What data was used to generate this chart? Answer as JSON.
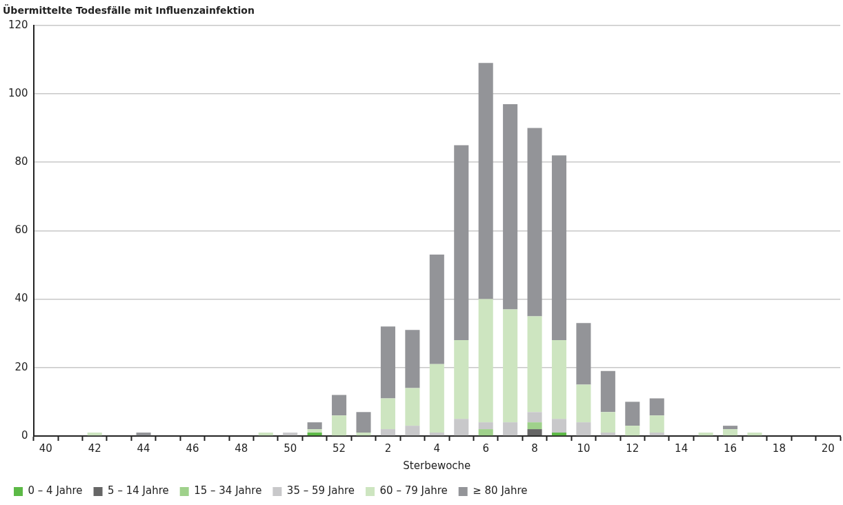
{
  "chart_data": {
    "type": "bar",
    "title": "Übermittelte Todesfälle mit Influenzainfektion",
    "xlabel": "Sterbewoche",
    "categories": [
      "40",
      null,
      "42",
      null,
      "44",
      null,
      "46",
      null,
      "48",
      null,
      "50",
      null,
      "52",
      null,
      "2",
      null,
      "4",
      null,
      "6",
      null,
      "8",
      null,
      "10",
      null,
      "12",
      null,
      "14",
      null,
      "16",
      null,
      "18",
      null,
      "20"
    ],
    "stacked": true,
    "ylim": [
      0,
      120
    ],
    "yticks": [
      0,
      20,
      40,
      60,
      80,
      100,
      120
    ],
    "grid": "y",
    "legend": "bottom",
    "series": [
      {
        "name": "0 – 4 Jahre",
        "color": "#5cb946",
        "values": [
          0,
          0,
          0,
          0,
          0,
          0,
          0,
          0,
          0,
          0,
          0,
          1,
          0,
          0,
          0,
          0,
          0,
          0,
          0,
          0,
          0,
          1,
          0,
          0,
          0,
          0,
          0,
          0,
          0,
          0,
          0,
          0,
          0
        ]
      },
      {
        "name": "5 – 14 Jahre",
        "color": "#666666",
        "values": [
          0,
          0,
          0,
          0,
          0,
          0,
          0,
          0,
          0,
          0,
          0,
          0,
          0,
          0,
          0,
          0,
          0,
          0,
          0,
          0,
          2,
          0,
          0,
          0,
          0,
          0,
          0,
          0,
          0,
          0,
          0,
          0,
          0
        ]
      },
      {
        "name": "15 – 34 Jahre",
        "color": "#9fd18b",
        "values": [
          0,
          0,
          0,
          0,
          0,
          0,
          0,
          0,
          0,
          0,
          0,
          0,
          0,
          0,
          0,
          0,
          0,
          0,
          2,
          0,
          2,
          0,
          0,
          0,
          0,
          0,
          0,
          0,
          0,
          0,
          0,
          0,
          0
        ]
      },
      {
        "name": "35 – 59 Jahre",
        "color": "#c8c8ca",
        "values": [
          0,
          0,
          0,
          0,
          0,
          0,
          0,
          0,
          0,
          0,
          1,
          0,
          0,
          0,
          2,
          3,
          1,
          5,
          2,
          4,
          3,
          4,
          4,
          1,
          0,
          1,
          0,
          0,
          0,
          0,
          0,
          0,
          0
        ]
      },
      {
        "name": "60 – 79 Jahre",
        "color": "#cde5c0",
        "values": [
          0,
          0,
          1,
          0,
          0,
          0,
          0,
          0,
          0,
          1,
          0,
          1,
          6,
          1,
          9,
          11,
          20,
          23,
          36,
          33,
          28,
          23,
          11,
          6,
          3,
          5,
          0,
          1,
          2,
          1,
          0,
          0,
          0
        ]
      },
      {
        "name": "≥ 80 Jahre",
        "color": "#939498",
        "values": [
          0,
          0,
          0,
          0,
          1,
          0,
          0,
          0,
          0,
          0,
          0,
          2,
          6,
          6,
          21,
          17,
          32,
          57,
          69,
          60,
          55,
          54,
          18,
          12,
          7,
          5,
          0,
          0,
          1,
          0,
          0,
          0,
          0
        ]
      }
    ]
  }
}
